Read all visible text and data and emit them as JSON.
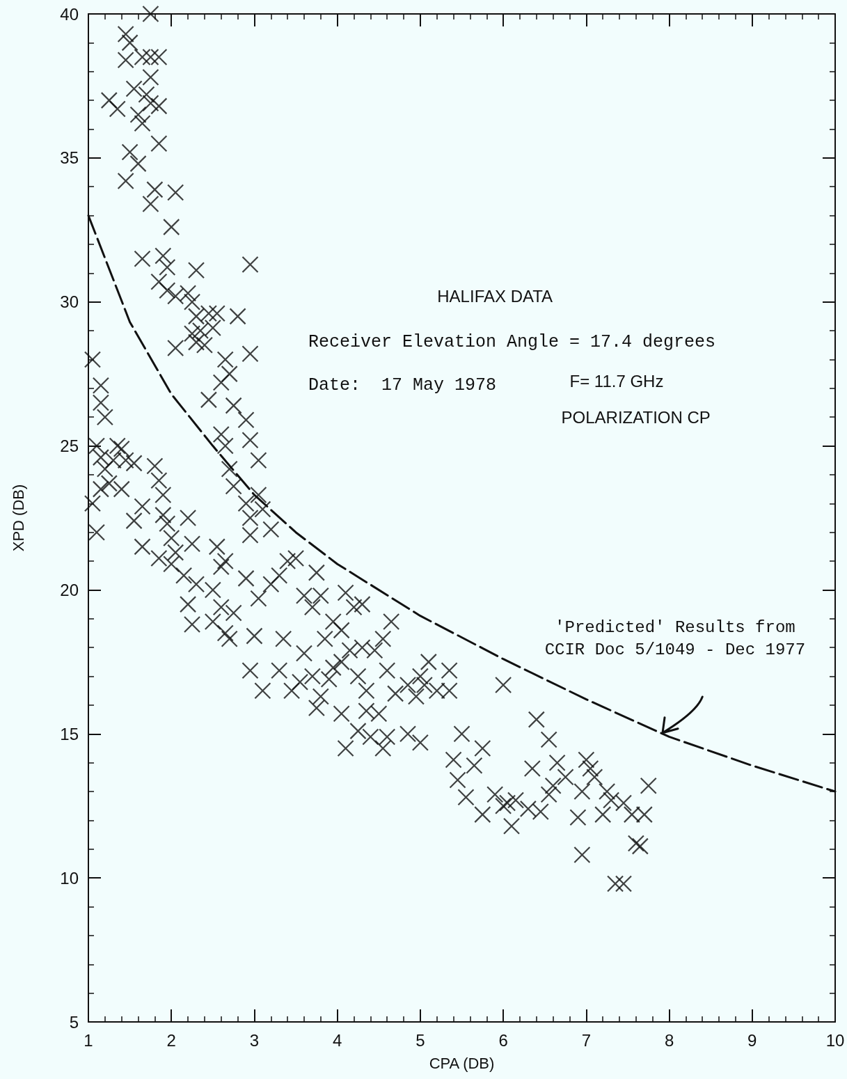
{
  "chart_data": {
    "type": "scatter",
    "xlabel": "CPA (DB)",
    "ylabel": "XPD (DB)",
    "xlim": [
      1,
      10
    ],
    "xticks": [
      1,
      2,
      3,
      4,
      5,
      6,
      7,
      8,
      9,
      10
    ],
    "ylim": [
      5,
      40
    ],
    "yticks": [
      5,
      10,
      15,
      20,
      25,
      30,
      35,
      40
    ],
    "marker": "cross",
    "annotations": [
      "HALIFAX DATA",
      "Receiver Elevation Angle = 17.4 degrees",
      "Date:  17 May 1978",
      "F= 11.7 GHz",
      "POLARIZATION CP",
      "'Predicted' Results from\nCCIR Doc 5/1049 - Dec 1977"
    ],
    "series": [
      {
        "color": "#111111",
        "x": [
          1.75,
          1.45,
          1.5,
          1.45,
          1.65,
          1.75,
          1.85,
          1.75,
          1.7,
          1.75,
          1.85,
          1.25,
          1.35,
          1.55,
          1.6,
          1.65,
          1.85,
          1.5,
          1.6,
          1.45,
          1.8,
          1.75,
          2.05,
          2.0,
          1.65,
          1.9,
          1.95,
          1.85,
          1.95,
          2.05,
          2.2,
          2.3,
          2.25,
          2.3,
          2.35,
          2.25,
          2.45,
          2.55,
          2.5,
          2.4,
          2.3,
          2.05,
          2.8,
          2.95,
          2.95,
          2.65,
          2.6,
          2.7,
          2.45,
          2.75,
          2.6,
          2.9,
          2.95,
          3.05,
          2.7,
          2.65,
          2.75,
          2.9,
          3.05,
          2.95,
          3.1,
          2.95,
          3.2,
          1.05,
          1.15,
          1.15,
          1.2,
          1.1,
          1.15,
          1.2,
          1.3,
          1.35,
          1.4,
          1.45,
          1.55,
          1.25,
          1.4,
          1.15,
          1.05,
          1.1,
          1.55,
          1.65,
          1.8,
          1.85,
          1.9,
          1.9,
          1.95,
          2.0,
          2.05,
          2.2,
          1.65,
          1.85,
          2.0,
          2.25,
          2.15,
          2.3,
          2.2,
          2.25,
          2.55,
          2.6,
          2.65,
          2.5,
          2.6,
          2.5,
          2.65,
          2.75,
          2.9,
          2.7,
          2.95,
          3.0,
          3.05,
          3.2,
          3.3,
          3.4,
          3.5,
          3.1,
          3.3,
          3.35,
          3.45,
          3.55,
          3.6,
          3.7,
          3.75,
          3.8,
          3.6,
          3.7,
          3.8,
          3.75,
          3.9,
          3.95,
          3.85,
          3.95,
          4.05,
          4.1,
          4.2,
          4.3,
          4.05,
          4.15,
          4.3,
          4.25,
          4.05,
          4.1,
          4.25,
          4.35,
          4.4,
          4.35,
          4.45,
          4.55,
          4.6,
          4.65,
          4.5,
          4.6,
          4.55,
          4.7,
          4.85,
          4.85,
          5.0,
          4.95,
          5.05,
          5.1,
          5.2,
          5.0,
          5.35,
          5.35,
          5.4,
          5.45,
          5.5,
          5.55,
          5.65,
          5.75,
          5.75,
          5.9,
          6.0,
          6.05,
          6.1,
          6.15,
          6.0,
          6.3,
          6.35,
          6.4,
          6.45,
          6.55,
          6.55,
          6.65,
          6.75,
          6.6,
          6.9,
          6.95,
          6.95,
          7.0,
          7.05,
          7.1,
          7.2,
          7.25,
          7.3,
          7.35,
          7.45,
          7.45,
          7.55,
          7.6,
          7.65,
          7.7,
          7.75
        ],
        "values": [
          40.0,
          39.3,
          39.0,
          38.4,
          38.5,
          38.5,
          38.5,
          37.8,
          37.2,
          36.9,
          36.8,
          37.0,
          36.7,
          37.4,
          36.5,
          36.2,
          35.5,
          35.2,
          34.8,
          34.2,
          33.9,
          33.4,
          33.8,
          32.6,
          31.5,
          31.6,
          31.2,
          30.7,
          30.4,
          30.2,
          30.3,
          31.1,
          30.0,
          29.5,
          29.0,
          28.9,
          29.6,
          29.6,
          29.1,
          28.5,
          28.6,
          28.4,
          29.5,
          31.3,
          28.2,
          28.0,
          27.2,
          27.5,
          26.6,
          26.4,
          25.4,
          25.9,
          25.2,
          24.5,
          24.2,
          25.0,
          23.6,
          23.0,
          23.3,
          22.5,
          22.8,
          21.9,
          22.1,
          28.0,
          27.1,
          26.5,
          26.0,
          25.0,
          24.6,
          24.2,
          24.5,
          25.0,
          24.9,
          24.5,
          24.4,
          23.7,
          23.5,
          23.5,
          23.0,
          22.0,
          22.4,
          22.9,
          24.3,
          23.8,
          23.3,
          22.6,
          22.3,
          21.8,
          21.3,
          22.5,
          21.5,
          21.1,
          20.9,
          21.6,
          20.5,
          20.2,
          19.5,
          18.8,
          21.5,
          20.8,
          21.0,
          20.0,
          19.4,
          18.9,
          18.5,
          19.2,
          20.4,
          18.3,
          17.2,
          18.4,
          19.7,
          20.2,
          20.5,
          21.0,
          21.1,
          16.5,
          17.2,
          18.3,
          16.5,
          16.8,
          19.8,
          19.4,
          20.6,
          19.8,
          17.8,
          17.0,
          16.3,
          15.9,
          16.9,
          17.3,
          18.3,
          18.9,
          18.6,
          19.9,
          19.4,
          19.5,
          17.5,
          17.9,
          18.0,
          17.0,
          15.7,
          14.5,
          15.1,
          15.8,
          14.9,
          16.5,
          17.9,
          18.3,
          17.2,
          18.9,
          15.7,
          14.9,
          14.5,
          16.4,
          15.0,
          16.7,
          17.0,
          16.3,
          16.7,
          17.5,
          16.5,
          14.7,
          17.2,
          16.5,
          14.1,
          13.4,
          15.0,
          12.8,
          13.9,
          14.5,
          12.2,
          12.9,
          12.5,
          12.6,
          11.8,
          12.7,
          16.7,
          12.4,
          13.8,
          15.5,
          12.3,
          14.8,
          12.9,
          14.0,
          13.5,
          13.2,
          12.1,
          10.8,
          13.0,
          14.1,
          13.8,
          13.5,
          12.2,
          13.0,
          12.7,
          9.8,
          9.8,
          12.6,
          12.2,
          11.2,
          11.1,
          12.2,
          13.2
        ]
      },
      {
        "type": "line",
        "color": "#111111",
        "marker": "none",
        "line_style": "dashed",
        "x": [
          1,
          1.5,
          2,
          2.5,
          3,
          3.5,
          4,
          5,
          6,
          7,
          8,
          9,
          10
        ],
        "values": [
          33,
          29.3,
          26.8,
          25.0,
          23.3,
          22.0,
          20.9,
          19.1,
          17.6,
          16.2,
          14.9,
          13.9,
          13
        ]
      }
    ]
  }
}
